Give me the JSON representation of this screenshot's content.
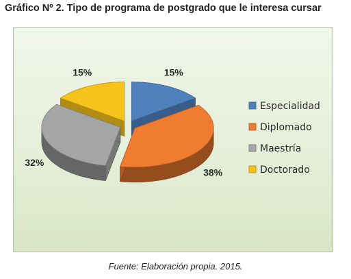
{
  "figure": {
    "title": "Gráfico Nº 2. Tipo de programa de postgrado que le interesa cursar",
    "source": "Fuente: Elaboración propia. 2015."
  },
  "chart_data": {
    "type": "pie",
    "three_d": true,
    "exploded": true,
    "legend_position": "right",
    "categories": [
      "Especialidad",
      "Diplomado",
      "Maestría",
      "Doctorado"
    ],
    "values": [
      15,
      38,
      32,
      15
    ],
    "labels": [
      "15%",
      "38%",
      "32%",
      "15%"
    ],
    "colors": [
      "#4f81bd",
      "#f07c31",
      "#a5a5a5",
      "#f6c21b"
    ]
  }
}
